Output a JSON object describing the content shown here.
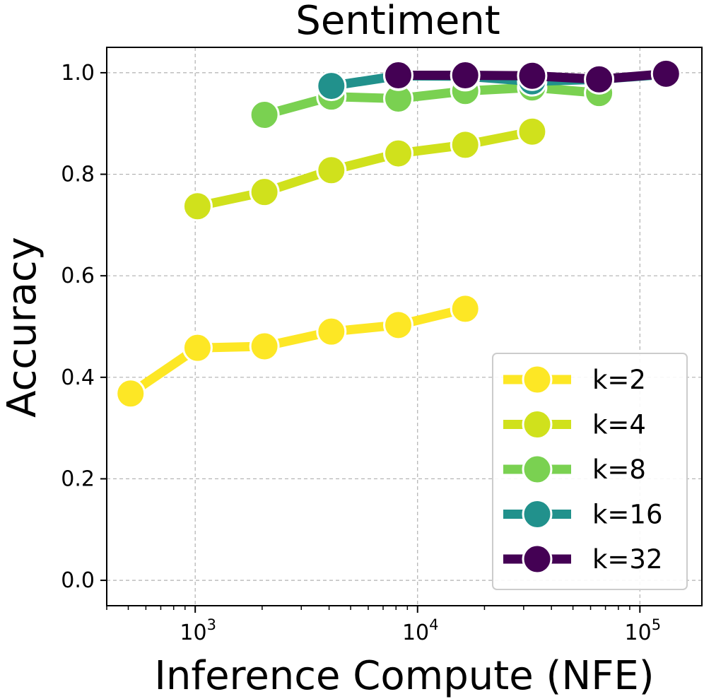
{
  "chart_data": {
    "type": "line",
    "title": "Sentiment",
    "xlabel": "Inference Compute (NFE)",
    "ylabel": "Accuracy",
    "x_scale": "log",
    "xlim": [
      400,
      190000
    ],
    "ylim": [
      -0.05,
      1.05
    ],
    "grid": true,
    "legend_position": "lower-right",
    "x_ticks": [
      {
        "value": 1000,
        "base": "10",
        "exp": "3"
      },
      {
        "value": 10000,
        "base": "10",
        "exp": "4"
      },
      {
        "value": 100000,
        "base": "10",
        "exp": "5"
      }
    ],
    "y_ticks": [
      {
        "value": 0.0,
        "label": "0.0"
      },
      {
        "value": 0.2,
        "label": "0.2"
      },
      {
        "value": 0.4,
        "label": "0.4"
      },
      {
        "value": 0.6,
        "label": "0.6"
      },
      {
        "value": 0.8,
        "label": "0.8"
      },
      {
        "value": 1.0,
        "label": "1.0"
      }
    ],
    "series": [
      {
        "name": "k=2",
        "color": "#fde725",
        "x": [
          512,
          1024,
          2048,
          4096,
          8192,
          16384
        ],
        "y": [
          0.368,
          0.458,
          0.461,
          0.49,
          0.503,
          0.535
        ]
      },
      {
        "name": "k=4",
        "color": "#d0e11c",
        "x": [
          1024,
          2048,
          4096,
          8192,
          16384,
          32768
        ],
        "y": [
          0.737,
          0.765,
          0.808,
          0.841,
          0.858,
          0.884
        ]
      },
      {
        "name": "k=8",
        "color": "#7ad151",
        "x": [
          2048,
          4096,
          8192,
          16384,
          32768,
          65536
        ],
        "y": [
          0.917,
          0.953,
          0.949,
          0.964,
          0.971,
          0.96
        ]
      },
      {
        "name": "k=16",
        "color": "#21918c",
        "x": [
          4096,
          8192,
          16384,
          32768,
          65536,
          131072
        ],
        "y": [
          0.974,
          0.994,
          0.993,
          0.983,
          0.987,
          0.997
        ]
      },
      {
        "name": "k=32",
        "color": "#440154",
        "x": [
          8192,
          16384,
          32768,
          65536,
          131072
        ],
        "y": [
          0.995,
          0.995,
          0.994,
          0.987,
          0.998
        ]
      }
    ]
  }
}
